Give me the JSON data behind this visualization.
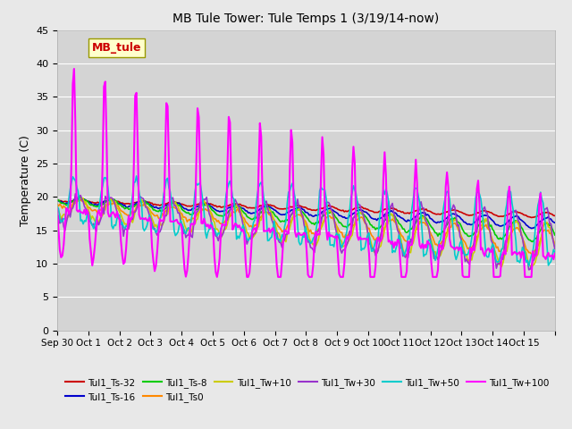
{
  "title": "MB Tule Tower: Tule Temps 1 (3/19/14-now)",
  "ylabel": "Temperature (C)",
  "ylim": [
    0,
    45
  ],
  "yticks": [
    0,
    5,
    10,
    15,
    20,
    25,
    30,
    35,
    40,
    45
  ],
  "xlim": [
    0,
    16
  ],
  "xtick_positions": [
    0,
    1,
    2,
    3,
    4,
    5,
    6,
    7,
    8,
    9,
    10,
    11,
    12,
    13,
    14,
    15,
    16
  ],
  "xtick_labels": [
    "Sep 30",
    "Oct 1",
    "Oct 2",
    "Oct 3",
    "Oct 4",
    "Oct 5",
    "Oct 6",
    "Oct 7",
    "Oct 8",
    "Oct 9",
    "Oct 10",
    "Oct 11",
    "Oct 12",
    "Oct 13",
    "Oct 14",
    "Oct 15",
    ""
  ],
  "background_color": "#e8e8e8",
  "plot_bg_color": "#d4d4d4",
  "series_names": [
    "Tul1_Ts-32",
    "Tul1_Ts-16",
    "Tul1_Ts-8",
    "Tul1_Ts0",
    "Tul1_Tw+10",
    "Tul1_Tw+30",
    "Tul1_Tw+50",
    "Tul1_Tw+100"
  ],
  "series_colors": [
    "#cc0000",
    "#0000cc",
    "#00cc00",
    "#ff8800",
    "#cccc00",
    "#9933cc",
    "#00cccc",
    "#ff00ff"
  ],
  "series_lw": [
    1.2,
    1.2,
    1.2,
    1.2,
    1.2,
    1.2,
    1.2,
    1.5
  ],
  "legend_ncol_row1": 6,
  "legend_ncol_row2": 2
}
